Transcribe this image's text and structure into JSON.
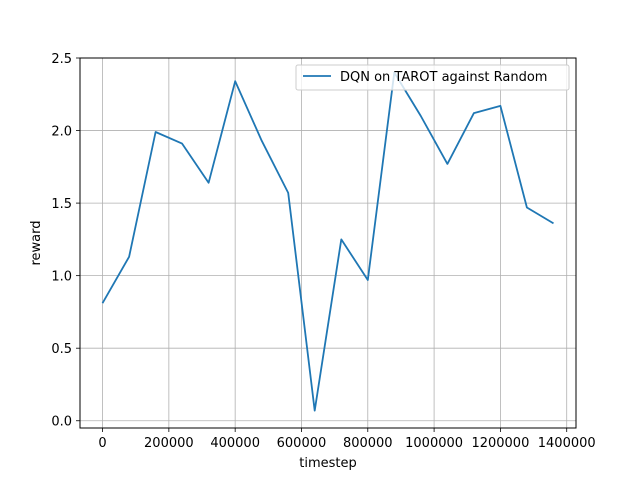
{
  "chart_data": {
    "type": "line",
    "title": "",
    "xlabel": "timestep",
    "ylabel": "reward",
    "xlim": [
      -68000,
      1428000
    ],
    "ylim": [
      -0.05,
      2.5
    ],
    "xticks": [
      0,
      200000,
      400000,
      600000,
      800000,
      1000000,
      1200000,
      1400000
    ],
    "xtick_labels": [
      "0",
      "200000",
      "400000",
      "600000",
      "800000",
      "1000000",
      "1200000",
      "1400000"
    ],
    "yticks": [
      0.0,
      0.5,
      1.0,
      1.5,
      2.0,
      2.5
    ],
    "ytick_labels": [
      "0.0",
      "0.5",
      "1.0",
      "1.5",
      "2.0",
      "2.5"
    ],
    "grid": true,
    "legend_position": "top-right",
    "series": [
      {
        "name": "DQN on TAROT against Random",
        "color": "#1f77b4",
        "x": [
          0,
          80000,
          160000,
          240000,
          320000,
          400000,
          480000,
          560000,
          640000,
          720000,
          800000,
          880000,
          960000,
          1040000,
          1120000,
          1200000,
          1280000,
          1360000
        ],
        "y": [
          0.81,
          1.13,
          1.99,
          1.91,
          1.64,
          2.34,
          1.93,
          1.57,
          0.07,
          1.25,
          0.97,
          2.4,
          2.1,
          1.77,
          2.12,
          2.17,
          1.47,
          1.36
        ]
      }
    ]
  }
}
